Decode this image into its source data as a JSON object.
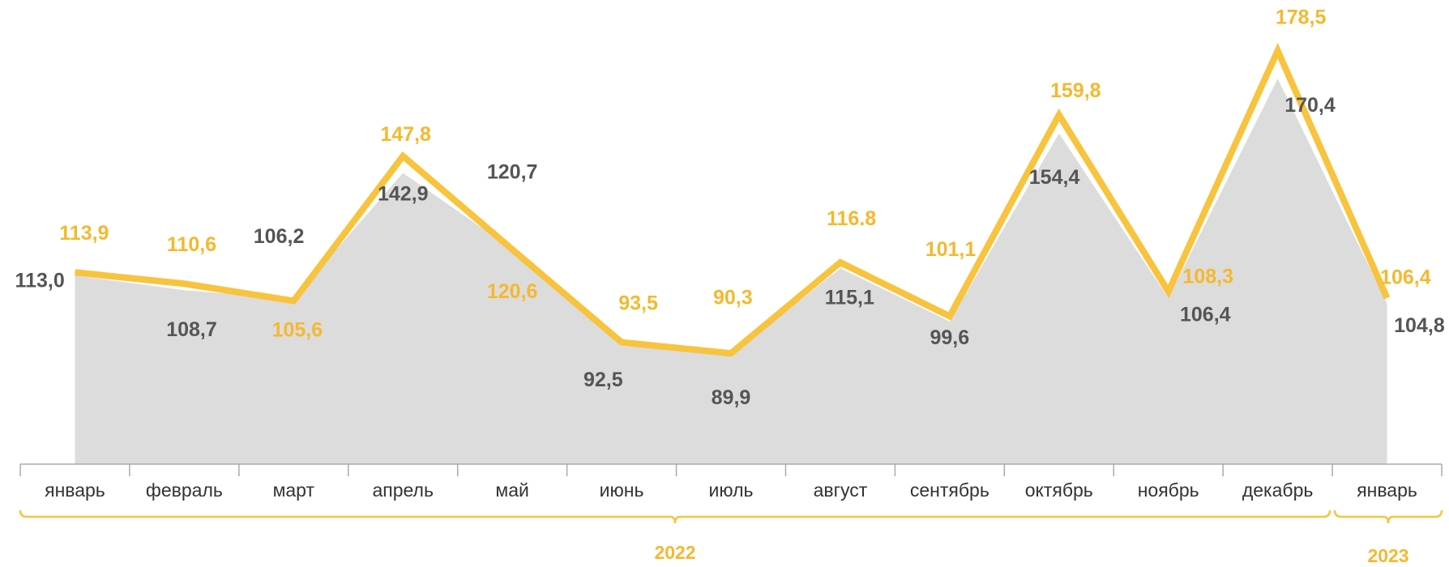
{
  "chart_data": {
    "type": "line",
    "categories": [
      "январь",
      "февраль",
      "март",
      "апрель",
      "май",
      "июнь",
      "июль",
      "август",
      "сентябрь",
      "октябрь",
      "ноябрь",
      "декабрь",
      "январь"
    ],
    "year_labels": [
      "2022",
      "2023"
    ],
    "ylim": [
      58,
      190
    ],
    "series": [
      {
        "kind": "area",
        "color": "#dcdcdc",
        "label_color": "#555555",
        "values": [
          113.0,
          108.7,
          106.2,
          142.9,
          120.7,
          92.5,
          89.9,
          115.1,
          99.6,
          154.4,
          106.4,
          170.4,
          104.8
        ],
        "value_labels": [
          "113,0",
          "108,7",
          "106,2",
          "142,9",
          "120,7",
          "92,5",
          "89,9",
          "115,1",
          "99,6",
          "154,4",
          "106,4",
          "170,4",
          "104,8"
        ]
      },
      {
        "kind": "line",
        "color": "#f8c33d",
        "label_color": "#f5b82e",
        "values": [
          113.9,
          110.6,
          105.6,
          147.8,
          120.6,
          93.5,
          90.3,
          116.8,
          101.1,
          159.8,
          108.3,
          178.5,
          106.4
        ],
        "value_labels": [
          "113,9",
          "110,6",
          "105,6",
          "147,8",
          "120,6",
          "93,5",
          "90,3",
          "116.8",
          "101,1",
          "159,8",
          "108,3",
          "178,5",
          "106,4"
        ]
      }
    ]
  }
}
